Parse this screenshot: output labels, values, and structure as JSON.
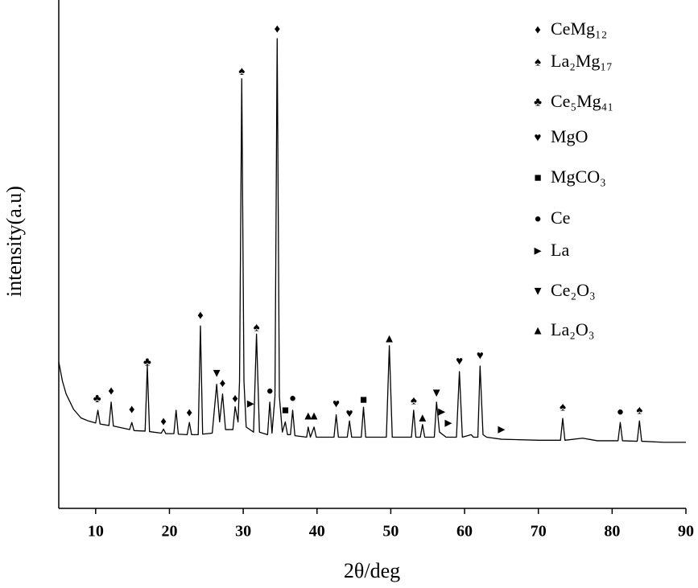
{
  "chart_data": {
    "type": "line",
    "xlabel": "2θ/deg",
    "ylabel": "intensity(a.u)",
    "xlim": [
      5,
      90
    ],
    "ylim": [
      0,
      100
    ],
    "xticks": [
      10,
      20,
      30,
      40,
      50,
      60,
      70,
      80,
      90
    ],
    "color": "#000000",
    "x": [
      5,
      5.5,
      6,
      7,
      8,
      9,
      10,
      10.3,
      10.6,
      11.8,
      12.1,
      12.4,
      14.6,
      14.9,
      15.2,
      16.7,
      17.0,
      17.3,
      18.9,
      19.2,
      19.5,
      20.6,
      20.9,
      21.2,
      22.4,
      22.7,
      23.0,
      23.9,
      24.2,
      24.5,
      25.8,
      26.4,
      26.8,
      27.2,
      27.6,
      28.6,
      28.9,
      29.3,
      29.5,
      29.8,
      30.1,
      30.4,
      31.4,
      31.8,
      32.2,
      33.3,
      33.6,
      33.9,
      34.3,
      34.6,
      34.9,
      35.3,
      35.7,
      36.0,
      36.4,
      36.7,
      37.0,
      38.6,
      38.8,
      39.1,
      39.6,
      39.9,
      42.3,
      42.6,
      42.9,
      44.1,
      44.4,
      44.7,
      46.0,
      46.3,
      46.6,
      49.4,
      49.8,
      50.2,
      52.8,
      53.1,
      53.4,
      54.0,
      54.3,
      54.6,
      55.9,
      56.2,
      56.6,
      57.5,
      58.9,
      59.3,
      59.7,
      60.9,
      61.2,
      61.8,
      62.1,
      62.5,
      63,
      65,
      70,
      73.0,
      73.3,
      73.6,
      76,
      78,
      80.8,
      81.1,
      81.4,
      83.4,
      83.7,
      84.0,
      87,
      90
    ],
    "values": [
      28.8,
      25,
      22.5,
      19.5,
      17.8,
      17.2,
      16.8,
      19.3,
      16.6,
      16.3,
      20.9,
      16.2,
      15.5,
      16.9,
      15.3,
      15.2,
      28.0,
      15.1,
      14.8,
      15.6,
      14.7,
      14.7,
      19.3,
      14.6,
      14.5,
      16.9,
      14.5,
      14.5,
      35.9,
      14.6,
      14.8,
      24.4,
      17,
      22.5,
      15.5,
      15.5,
      20.0,
      17,
      25,
      84.5,
      25,
      16,
      15,
      34.3,
      15,
      14.5,
      20.9,
      14.8,
      22,
      92.4,
      22,
      15,
      17,
      14.5,
      14.5,
      19.3,
      14.3,
      14,
      16,
      14,
      16,
      14,
      14,
      18.4,
      14,
      14,
      17.2,
      14,
      14,
      19.9,
      14,
      14,
      32,
      14,
      14,
      19.3,
      14,
      14,
      16.5,
      14,
      14,
      20.9,
      15,
      14,
      14,
      26.9,
      14,
      14.5,
      14,
      14,
      28,
      14.5,
      14,
      13.6,
      13.4,
      13.4,
      17.7,
      13.4,
      13.8,
      13.3,
      13.3,
      16.9,
      13.3,
      13.2,
      17.2,
      13.2,
      13.0,
      13.0
    ],
    "annotations": [
      {
        "x": 10.2,
        "y": 21.4,
        "label": "♣"
      },
      {
        "x": 12.1,
        "y": 22.9,
        "label": "♦"
      },
      {
        "x": 14.9,
        "y": 19.3,
        "label": "♦"
      },
      {
        "x": 17.0,
        "y": 28.6,
        "label": "♣"
      },
      {
        "x": 19.2,
        "y": 16.9,
        "label": "♦"
      },
      {
        "x": 22.7,
        "y": 18.7,
        "label": "♦"
      },
      {
        "x": 24.2,
        "y": 37.8,
        "label": "♦"
      },
      {
        "x": 26.4,
        "y": 26.4,
        "label": "▼"
      },
      {
        "x": 27.2,
        "y": 24.4,
        "label": "♦"
      },
      {
        "x": 28.9,
        "y": 21.4,
        "label": "♦"
      },
      {
        "x": 29.8,
        "y": 85.8,
        "label": "♠"
      },
      {
        "x": 31.0,
        "y": 20.4,
        "label": "►"
      },
      {
        "x": 31.8,
        "y": 35.4,
        "label": "♠"
      },
      {
        "x": 33.6,
        "y": 22.9,
        "label": "●"
      },
      {
        "x": 34.6,
        "y": 94.1,
        "label": "♦"
      },
      {
        "x": 35.7,
        "y": 19.1,
        "label": "■"
      },
      {
        "x": 36.7,
        "y": 21.5,
        "label": "●"
      },
      {
        "x": 38.8,
        "y": 18,
        "label": "▲"
      },
      {
        "x": 39.6,
        "y": 18,
        "label": "▲"
      },
      {
        "x": 42.6,
        "y": 20.4,
        "label": "♥"
      },
      {
        "x": 44.4,
        "y": 18.5,
        "label": "♥"
      },
      {
        "x": 46.3,
        "y": 21.2,
        "label": "■"
      },
      {
        "x": 49.8,
        "y": 33.2,
        "label": "▲"
      },
      {
        "x": 53.1,
        "y": 21,
        "label": "♠"
      },
      {
        "x": 54.3,
        "y": 17.6,
        "label": "▲"
      },
      {
        "x": 56.2,
        "y": 22.5,
        "label": "▼"
      },
      {
        "x": 56.9,
        "y": 18.8,
        "label": "►"
      },
      {
        "x": 57.8,
        "y": 16.6,
        "label": "►"
      },
      {
        "x": 59.3,
        "y": 28.8,
        "label": "♥"
      },
      {
        "x": 62.1,
        "y": 29.9,
        "label": "♥"
      },
      {
        "x": 65.0,
        "y": 15.3,
        "label": "►"
      },
      {
        "x": 73.3,
        "y": 19.8,
        "label": "♠"
      },
      {
        "x": 81.1,
        "y": 18.8,
        "label": "●"
      },
      {
        "x": 83.7,
        "y": 19.1,
        "label": "♠"
      }
    ],
    "legend": [
      {
        "symbol": "♦",
        "label": "CeMg₁₂"
      },
      {
        "symbol": "♠",
        "label": "La₂Mg₁₇"
      },
      {
        "symbol": "♣",
        "label": "Ce₅Mg₄₁"
      },
      {
        "symbol": "♥",
        "label": "MgO"
      },
      {
        "symbol": "■",
        "label": "MgCO₃"
      },
      {
        "symbol": "●",
        "label": "Ce"
      },
      {
        "symbol": "►",
        "label": "La"
      },
      {
        "symbol": "▼",
        "label": "Ce₂O₃"
      },
      {
        "symbol": "▲",
        "label": "La₂O₃"
      }
    ]
  }
}
